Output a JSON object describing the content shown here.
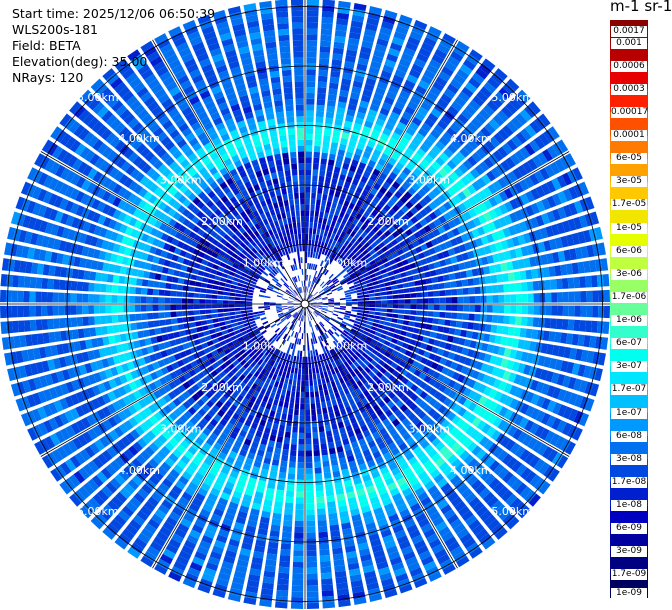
{
  "info": {
    "start_time": "Start time: 2025/12/06 06:50:39",
    "instrument": "WLS200s-181",
    "field": "Field: BETA",
    "elevation": "Elevation(deg): 35.00",
    "nrays": "NRays: 120"
  },
  "colorbar": {
    "title": "m-1 sr-1",
    "levels": [
      "0.0017",
      "0.001",
      "0.0006",
      "0.0003",
      "0.00017",
      "0.0001",
      "6e-05",
      "3e-05",
      "1.7e-05",
      "1e-05",
      "6e-06",
      "3e-06",
      "1.7e-06",
      "1e-06",
      "6e-07",
      "3e-07",
      "1.7e-07",
      "1e-07",
      "6e-08",
      "3e-08",
      "1.7e-08",
      "1e-08",
      "6e-09",
      "3e-09",
      "1.7e-09",
      "1e-09"
    ],
    "colors": [
      "#8b0000",
      "#b80000",
      "#e60000",
      "#ff2000",
      "#ff5000",
      "#ff7a00",
      "#ffa200",
      "#ffc800",
      "#f2e600",
      "#e6ff00",
      "#bfff40",
      "#99ff66",
      "#66ff99",
      "#33ffcc",
      "#00ffee",
      "#00e6ff",
      "#00c0ff",
      "#0099ff",
      "#0070f0",
      "#0048e0",
      "#0020d0",
      "#0000c0",
      "#0000a0",
      "#000080",
      "#000060"
    ]
  },
  "chart_data": {
    "type": "heatmap",
    "projection": "polar (PPI scan)",
    "field": "BETA",
    "units": "m-1 sr-1",
    "elevation_deg": 35.0,
    "n_rays": 120,
    "range_rings_km": [
      1.0,
      2.0,
      3.0,
      4.0,
      5.0
    ],
    "range_ring_labels": [
      "1.00km",
      "2.00km",
      "3.00km",
      "4.00km",
      "5.00km"
    ],
    "max_range_km": 5.0,
    "color_scale": "log",
    "value_range": [
      1e-09,
      0.0017
    ],
    "features": [
      {
        "range_km": [
          0.0,
          1.0
        ],
        "value_approx": 1e-08,
        "note": "near-field, mostly white/sparse with blue"
      },
      {
        "range_km": [
          1.0,
          2.5
        ],
        "value_approx": 1.7e-08,
        "note": "deep blue speckle"
      },
      {
        "range_km": [
          2.8,
          3.6
        ],
        "value_approx": 3e-07,
        "note": "cyan/green ring, strongest to the south-east and north"
      },
      {
        "range_km": [
          3.6,
          5.0
        ],
        "value_approx": 3e-08,
        "note": "light blue outer field"
      }
    ]
  }
}
